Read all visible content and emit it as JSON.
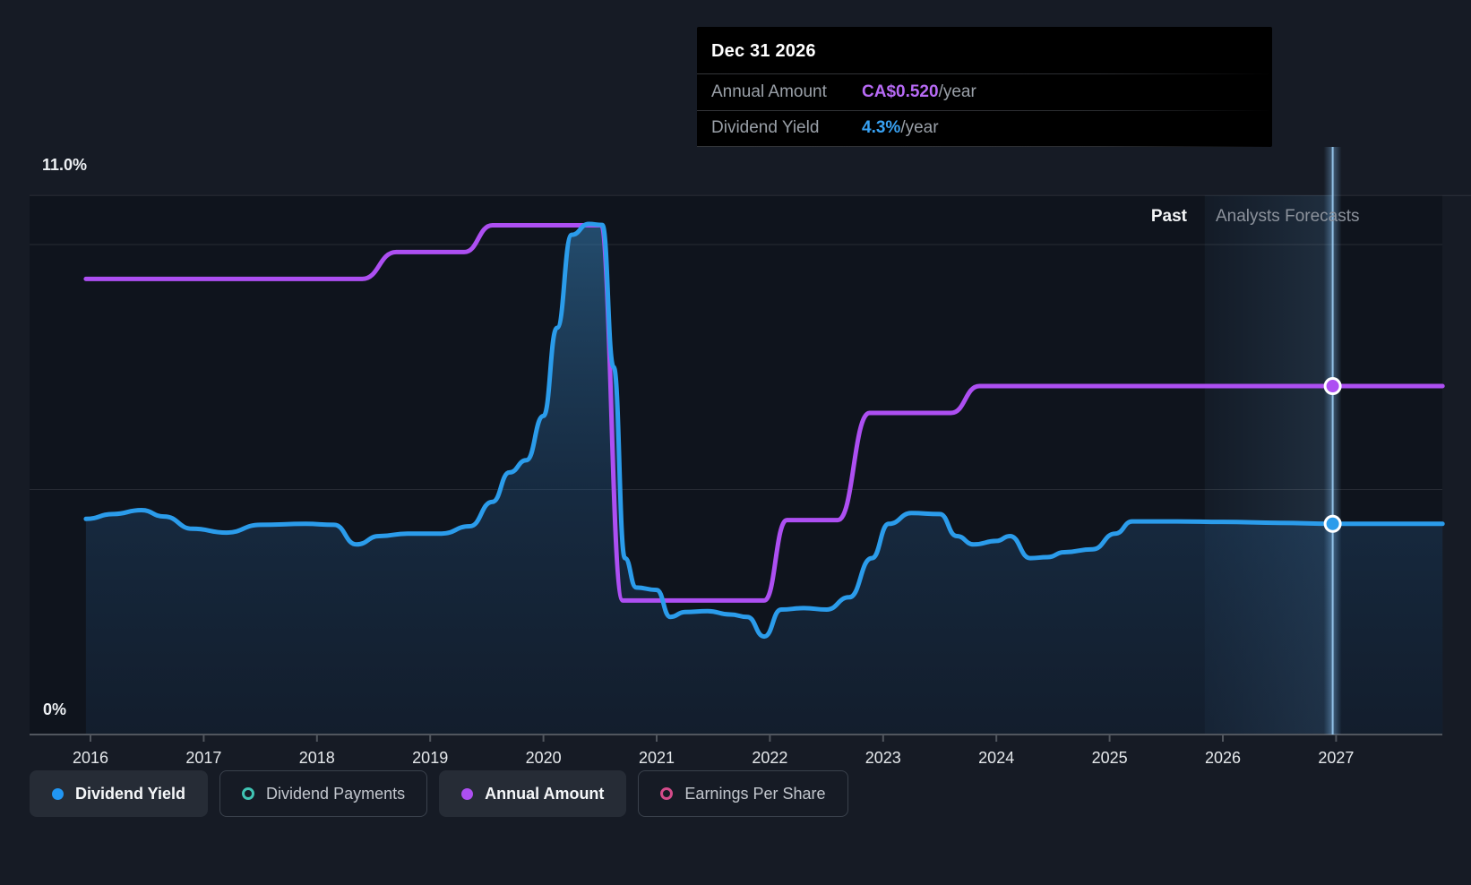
{
  "tooltip": {
    "title": "Dec 31 2026",
    "rows": [
      {
        "label": "Annual Amount",
        "value": "CA$0.520",
        "suffix": "/year",
        "color": "#b76af5"
      },
      {
        "label": "Dividend Yield",
        "value": "4.3%",
        "suffix": "/year",
        "color": "#38a1f2"
      }
    ]
  },
  "regions": {
    "past": "Past",
    "forecast": "Analysts Forecasts"
  },
  "legend": [
    {
      "label": "Dividend Yield",
      "color": "#2196f3",
      "style": "filled",
      "active": true
    },
    {
      "label": "Dividend Payments",
      "color": "#40c4b4",
      "style": "ring",
      "active": false
    },
    {
      "label": "Annual Amount",
      "color": "#ad4ff2",
      "style": "filled",
      "active": true
    },
    {
      "label": "Earnings Per Share",
      "color": "#d44b8a",
      "style": "ring",
      "active": false
    }
  ],
  "colors": {
    "background": "#161b25",
    "plot_background": "#0f141d",
    "gridline": "rgba(255,255,255,0.10)",
    "axis": "#51565e",
    "yield_line": "#2b9ceb",
    "amount_line": "#ad4ff2",
    "hover_line": "#9fd0f7",
    "tick_label": "#e6e9ec"
  },
  "chart_data": {
    "type": "line",
    "title": "Dividend history and forecast",
    "x_axis": {
      "ticks": [
        2016,
        2017,
        2018,
        2019,
        2020,
        2021,
        2022,
        2023,
        2024,
        2025,
        2026,
        2027
      ],
      "range": [
        2015.96,
        2027.94
      ]
    },
    "y_axis": {
      "unit": "%",
      "max_label": "11.0%",
      "min_label": "0%",
      "range": [
        0,
        11
      ],
      "gridlines_pct": [
        11,
        10,
        5,
        0
      ]
    },
    "series": [
      {
        "name": "Dividend Yield",
        "unit": "%",
        "color": "#2b9ceb",
        "area": true,
        "visible": true,
        "points": [
          [
            2015.96,
            4.4
          ],
          [
            2016.2,
            4.5
          ],
          [
            2016.45,
            4.58
          ],
          [
            2016.65,
            4.45
          ],
          [
            2016.9,
            4.2
          ],
          [
            2017.2,
            4.12
          ],
          [
            2017.5,
            4.28
          ],
          [
            2017.9,
            4.3
          ],
          [
            2018.15,
            4.28
          ],
          [
            2018.35,
            3.88
          ],
          [
            2018.55,
            4.05
          ],
          [
            2018.8,
            4.1
          ],
          [
            2019.1,
            4.1
          ],
          [
            2019.35,
            4.25
          ],
          [
            2019.55,
            4.75
          ],
          [
            2019.7,
            5.35
          ],
          [
            2019.85,
            5.6
          ],
          [
            2020.0,
            6.5
          ],
          [
            2020.12,
            8.3
          ],
          [
            2020.25,
            10.2
          ],
          [
            2020.4,
            10.42
          ],
          [
            2020.52,
            10.4
          ],
          [
            2020.62,
            7.5
          ],
          [
            2020.72,
            3.6
          ],
          [
            2020.82,
            3.0
          ],
          [
            2021.0,
            2.95
          ],
          [
            2021.12,
            2.4
          ],
          [
            2021.25,
            2.5
          ],
          [
            2021.45,
            2.52
          ],
          [
            2021.65,
            2.45
          ],
          [
            2021.8,
            2.4
          ],
          [
            2021.95,
            2.0
          ],
          [
            2022.1,
            2.55
          ],
          [
            2022.3,
            2.58
          ],
          [
            2022.5,
            2.55
          ],
          [
            2022.7,
            2.8
          ],
          [
            2022.9,
            3.6
          ],
          [
            2023.05,
            4.3
          ],
          [
            2023.25,
            4.52
          ],
          [
            2023.5,
            4.5
          ],
          [
            2023.65,
            4.05
          ],
          [
            2023.8,
            3.88
          ],
          [
            2024.0,
            3.95
          ],
          [
            2024.12,
            4.05
          ],
          [
            2024.3,
            3.6
          ],
          [
            2024.45,
            3.62
          ],
          [
            2024.6,
            3.72
          ],
          [
            2024.85,
            3.78
          ],
          [
            2025.05,
            4.1
          ],
          [
            2025.2,
            4.35
          ],
          [
            2025.6,
            4.35
          ],
          [
            2026.0,
            4.34
          ],
          [
            2026.5,
            4.32
          ],
          [
            2026.97,
            4.3
          ],
          [
            2027.94,
            4.3
          ]
        ]
      },
      {
        "name": "Annual Amount",
        "unit": "CA$ per share/year",
        "color": "#ad4ff2",
        "area": false,
        "visible": true,
        "points": [
          [
            2015.96,
            0.68
          ],
          [
            2018.4,
            0.68
          ],
          [
            2018.7,
            0.72
          ],
          [
            2019.3,
            0.72
          ],
          [
            2019.55,
            0.76
          ],
          [
            2020.5,
            0.76
          ],
          [
            2020.7,
            0.2
          ],
          [
            2021.95,
            0.2
          ],
          [
            2022.15,
            0.32
          ],
          [
            2022.6,
            0.32
          ],
          [
            2022.88,
            0.48
          ],
          [
            2023.6,
            0.48
          ],
          [
            2023.85,
            0.52
          ],
          [
            2026.97,
            0.52
          ],
          [
            2027.94,
            0.52
          ]
        ]
      },
      {
        "name": "Dividend Payments",
        "unit": "",
        "color": "#40c4b4",
        "area": false,
        "visible": false,
        "points": []
      },
      {
        "name": "Earnings Per Share",
        "unit": "",
        "color": "#d44b8a",
        "area": false,
        "visible": false,
        "points": []
      }
    ],
    "forecast": {
      "divider_year": 2025.84,
      "hover_year": 2026.97,
      "hover_point": {
        "date": "Dec 31 2026",
        "annual_amount": "CA$0.520/year",
        "dividend_yield": "4.3%/year"
      }
    }
  }
}
